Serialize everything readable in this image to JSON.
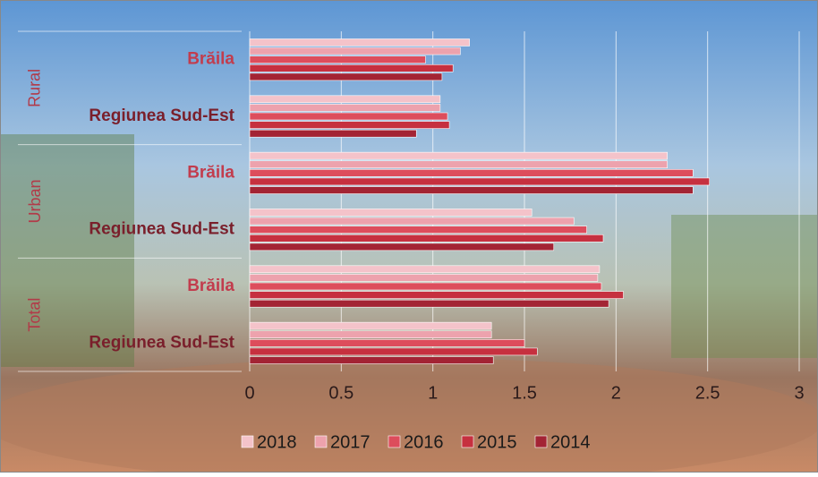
{
  "chart_data": {
    "type": "bar",
    "orientation": "horizontal",
    "groups": [
      "Rural",
      "Urban",
      "Total"
    ],
    "categories": [
      "Brăila",
      "Regiunea Sud-Est",
      "Brăila",
      "Regiunea Sud-Est",
      "Brăila",
      "Regiunea Sud-Est"
    ],
    "series": [
      {
        "name": "2018",
        "color": "#f4c3ca",
        "values": [
          1.2,
          1.04,
          2.28,
          1.54,
          1.91,
          1.32
        ]
      },
      {
        "name": "2017",
        "color": "#eda2ad",
        "values": [
          1.15,
          1.04,
          2.28,
          1.77,
          1.9,
          1.32
        ]
      },
      {
        "name": "2016",
        "color": "#dd4d5c",
        "values": [
          0.96,
          1.08,
          2.42,
          1.84,
          1.92,
          1.5
        ]
      },
      {
        "name": "2015",
        "color": "#c6303f",
        "values": [
          1.11,
          1.09,
          2.51,
          1.93,
          2.04,
          1.57
        ]
      },
      {
        "name": "2014",
        "color": "#a32434",
        "values": [
          1.05,
          0.91,
          2.42,
          1.66,
          1.96,
          1.33
        ]
      }
    ],
    "xlim": [
      0,
      3
    ],
    "xticks": [
      0,
      0.5,
      1,
      1.5,
      2,
      2.5,
      3
    ],
    "grid": true
  }
}
